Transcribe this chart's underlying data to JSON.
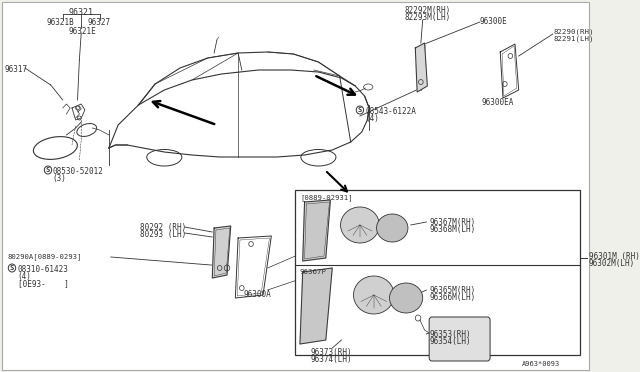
{
  "bg_color": "#f0f0eb",
  "white": "#ffffff",
  "lc": "#333333",
  "pc": "#333333",
  "fs": 5.5,
  "labels": {
    "top_group": "96321",
    "tl_sub1": "96321B",
    "tl_sub2": "96327",
    "tl_sub3": "96321E",
    "tl_part": "96317",
    "tl_screw_label": "08530-52012",
    "tl_screw_qty": "(3)",
    "tr1": "82292M(RH)",
    "tr2": "82293M(LH)",
    "tr3": "96300E",
    "tr4": "82290(RH)",
    "tr5": "82291(LH)",
    "tr6": "96300EA",
    "tr_screw": "08543-6122A",
    "tr_screw_qty": "(4)",
    "box_date": "[0889-02931]",
    "box_sub1a": "96367M(RH)",
    "box_sub1b": "96368M(LH)",
    "box_p": "96367P",
    "box_sub2a": "96365M(RH)",
    "box_sub2b": "96366M(LH)",
    "box_sub3a": "96353(RH)",
    "box_sub3b": "96354(LH)",
    "bl1a": "80292 (RH)",
    "bl1b": "80293 (LH)",
    "bl2": "80290A[0889-0293]",
    "bl_screw": "08310-61423",
    "bl_screw_qty1": "(4)",
    "bl_screw_qty2": "[0E93-    ]",
    "bl_part": "96300A",
    "box_bot_lft_a": "96373(RH)",
    "box_bot_lft_b": "96374(LH)",
    "right_a": "96301M (RH)",
    "right_b": "96302M(LH)",
    "stamp": "A963*0093"
  }
}
